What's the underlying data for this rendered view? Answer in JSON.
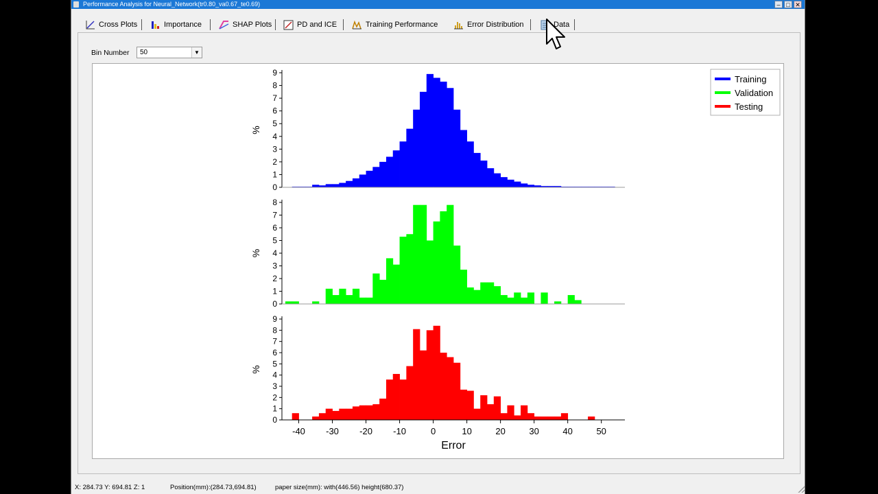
{
  "window": {
    "title": "Performance Analysis for Neural_Network(tr0.80_va0.67_te0.69)",
    "min_label": "–",
    "max_label": "□",
    "close_label": "✕"
  },
  "tabs": [
    {
      "label": "Cross Plots",
      "icon": "cross-plot-icon"
    },
    {
      "label": "Importance",
      "icon": "importance-icon"
    },
    {
      "label": "SHAP Plots",
      "icon": "shap-icon"
    },
    {
      "label": "PD and ICE",
      "icon": "pd-ice-icon"
    },
    {
      "label": "Training Performance",
      "icon": "training-performance-icon"
    },
    {
      "label": "Error Distribution",
      "icon": "error-distribution-icon"
    },
    {
      "label": "Data",
      "icon": "data-icon"
    }
  ],
  "controls": {
    "bin_label": "Bin Number",
    "bin_value": "50"
  },
  "legend": [
    {
      "label": "Training",
      "color": "#0000ff"
    },
    {
      "label": "Validation",
      "color": "#00ff00"
    },
    {
      "label": "Testing",
      "color": "#ff0000"
    }
  ],
  "chart_data": {
    "type": "bar",
    "xlabel": "Error",
    "xlim": [
      -45,
      57
    ],
    "xticks": [
      -40,
      -30,
      -20,
      -10,
      0,
      10,
      20,
      30,
      40,
      50
    ],
    "bin_width": 2,
    "subplots": [
      {
        "name": "Training",
        "ylabel": "%",
        "ylim": [
          0,
          9
        ],
        "yticks": [
          0,
          1,
          2,
          3,
          4,
          5,
          6,
          7,
          8,
          9
        ],
        "color": "#0000ff",
        "bins": [
          [
            -41,
            0.05
          ],
          [
            -39,
            0.05
          ],
          [
            -37,
            0.05
          ],
          [
            -35,
            0.2
          ],
          [
            -33,
            0.15
          ],
          [
            -31,
            0.25
          ],
          [
            -29,
            0.25
          ],
          [
            -27,
            0.35
          ],
          [
            -25,
            0.5
          ],
          [
            -23,
            0.7
          ],
          [
            -21,
            1.0
          ],
          [
            -19,
            1.3
          ],
          [
            -17,
            1.6
          ],
          [
            -15,
            2.0
          ],
          [
            -13,
            2.4
          ],
          [
            -11,
            2.9
          ],
          [
            -9,
            3.6
          ],
          [
            -7,
            4.6
          ],
          [
            -5,
            6.1
          ],
          [
            -3,
            7.5
          ],
          [
            -1,
            8.9
          ],
          [
            1,
            8.6
          ],
          [
            3,
            8.3
          ],
          [
            5,
            7.8
          ],
          [
            7,
            6.1
          ],
          [
            9,
            4.5
          ],
          [
            11,
            3.6
          ],
          [
            13,
            2.7
          ],
          [
            15,
            2.1
          ],
          [
            17,
            1.5
          ],
          [
            19,
            1.1
          ],
          [
            21,
            0.8
          ],
          [
            23,
            0.6
          ],
          [
            25,
            0.45
          ],
          [
            27,
            0.3
          ],
          [
            29,
            0.2
          ],
          [
            31,
            0.15
          ],
          [
            33,
            0.1
          ],
          [
            35,
            0.1
          ],
          [
            37,
            0.1
          ],
          [
            39,
            0.05
          ],
          [
            41,
            0.05
          ],
          [
            43,
            0.05
          ],
          [
            45,
            0.05
          ],
          [
            47,
            0.05
          ],
          [
            49,
            0.05
          ],
          [
            51,
            0.05
          ],
          [
            53,
            0.05
          ]
        ]
      },
      {
        "name": "Validation",
        "ylabel": "%",
        "ylim": [
          0,
          8
        ],
        "yticks": [
          0,
          1,
          2,
          3,
          4,
          5,
          6,
          7,
          8
        ],
        "color": "#00ff00",
        "bins": [
          [
            -43,
            0.2
          ],
          [
            -41,
            0.2
          ],
          [
            -39,
            0
          ],
          [
            -37,
            0
          ],
          [
            -35,
            0.2
          ],
          [
            -33,
            0
          ],
          [
            -31,
            1.2
          ],
          [
            -29,
            0.7
          ],
          [
            -27,
            1.2
          ],
          [
            -25,
            0.7
          ],
          [
            -23,
            1.2
          ],
          [
            -21,
            0.5
          ],
          [
            -19,
            0.5
          ],
          [
            -17,
            2.4
          ],
          [
            -15,
            1.9
          ],
          [
            -13,
            3.6
          ],
          [
            -11,
            3.1
          ],
          [
            -9,
            5.3
          ],
          [
            -7,
            5.5
          ],
          [
            -5,
            7.8
          ],
          [
            -3,
            7.8
          ],
          [
            -1,
            5.0
          ],
          [
            1,
            6.5
          ],
          [
            3,
            7.3
          ],
          [
            5,
            7.8
          ],
          [
            7,
            4.6
          ],
          [
            9,
            2.7
          ],
          [
            11,
            1.3
          ],
          [
            13,
            1.1
          ],
          [
            15,
            1.7
          ],
          [
            17,
            1.7
          ],
          [
            19,
            1.4
          ],
          [
            21,
            0.7
          ],
          [
            23,
            0.5
          ],
          [
            25,
            0.9
          ],
          [
            27,
            0.5
          ],
          [
            29,
            0.9
          ],
          [
            31,
            0
          ],
          [
            33,
            0.9
          ],
          [
            35,
            0
          ],
          [
            37,
            0.2
          ],
          [
            39,
            0
          ],
          [
            41,
            0.7
          ],
          [
            43,
            0.3
          ]
        ]
      },
      {
        "name": "Testing",
        "ylabel": "%",
        "ylim": [
          0,
          9
        ],
        "yticks": [
          0,
          1,
          2,
          3,
          4,
          5,
          6,
          7,
          8,
          9
        ],
        "color": "#ff0000",
        "bins": [
          [
            -41,
            0.6
          ],
          [
            -39,
            0
          ],
          [
            -37,
            0
          ],
          [
            -35,
            0.3
          ],
          [
            -33,
            0.6
          ],
          [
            -31,
            1.0
          ],
          [
            -29,
            0.8
          ],
          [
            -27,
            1.0
          ],
          [
            -25,
            1.0
          ],
          [
            -23,
            1.2
          ],
          [
            -21,
            1.3
          ],
          [
            -19,
            1.3
          ],
          [
            -17,
            1.4
          ],
          [
            -15,
            1.9
          ],
          [
            -13,
            3.6
          ],
          [
            -11,
            4.1
          ],
          [
            -9,
            3.6
          ],
          [
            -7,
            4.8
          ],
          [
            -5,
            8.1
          ],
          [
            -3,
            6.2
          ],
          [
            -1,
            8.0
          ],
          [
            1,
            8.4
          ],
          [
            3,
            6.0
          ],
          [
            5,
            5.6
          ],
          [
            7,
            5.1
          ],
          [
            9,
            2.7
          ],
          [
            11,
            2.6
          ],
          [
            13,
            1.0
          ],
          [
            15,
            2.2
          ],
          [
            17,
            1.4
          ],
          [
            19,
            2.1
          ],
          [
            21,
            0.6
          ],
          [
            23,
            1.3
          ],
          [
            25,
            0.4
          ],
          [
            27,
            1.3
          ],
          [
            29,
            0.6
          ],
          [
            31,
            0.3
          ],
          [
            33,
            0.3
          ],
          [
            35,
            0.3
          ],
          [
            37,
            0.3
          ],
          [
            39,
            0.6
          ],
          [
            41,
            0
          ],
          [
            43,
            0
          ],
          [
            45,
            0
          ],
          [
            47,
            0.3
          ]
        ]
      }
    ]
  },
  "status": {
    "coords": "X: 284.73  Y: 694.81  Z: 1",
    "position": "Position(mm):(284.73,694.81)",
    "paper": "paper size(mm): with(446.56)  height(680.37)"
  }
}
